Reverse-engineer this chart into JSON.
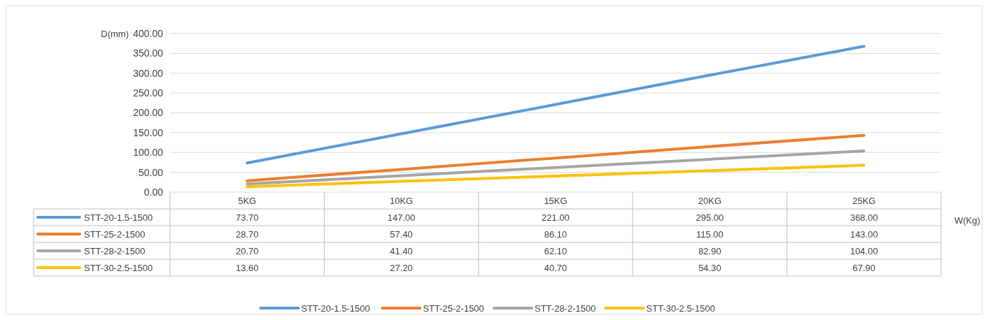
{
  "chart_data": {
    "type": "line",
    "ylabel": "D(mm)",
    "xlabel": "W(Kg)",
    "categories": [
      "5KG",
      "10KG",
      "15KG",
      "20KG",
      "25KG"
    ],
    "series": [
      {
        "name": "STT-20-1.5-1500",
        "color": "#5b9bd5",
        "values": [
          73.7,
          147,
          221,
          295,
          368
        ],
        "value_labels": [
          "73.70",
          "147.00",
          "221.00",
          "295.00",
          "368.00"
        ]
      },
      {
        "name": "STT-25-2-1500",
        "color": "#ed7d31",
        "values": [
          28.7,
          57.4,
          86.1,
          115,
          143
        ],
        "value_labels": [
          "28.70",
          "57.40",
          "86.10",
          "115.00",
          "143.00"
        ]
      },
      {
        "name": "STT-28-2-1500",
        "color": "#a5a5a5",
        "values": [
          20.7,
          41.4,
          62.1,
          82.9,
          104
        ],
        "value_labels": [
          "20.70",
          "41.40",
          "62.10",
          "82.90",
          "104.00"
        ]
      },
      {
        "name": "STT-30-2.5-1500",
        "color": "#ffc000",
        "values": [
          13.6,
          27.2,
          40.7,
          54.3,
          67.9
        ],
        "value_labels": [
          "13.60",
          "27.20",
          "40.70",
          "54.30",
          "67.90"
        ]
      }
    ],
    "ylim": [
      0,
      400
    ],
    "yticks": [
      {
        "value": 0,
        "label": "0.00"
      },
      {
        "value": 50,
        "label": "50.00"
      },
      {
        "value": 100,
        "label": "100.00"
      },
      {
        "value": 150,
        "label": "150.00"
      },
      {
        "value": 200,
        "label": "200.00"
      },
      {
        "value": 250,
        "label": "250.00"
      },
      {
        "value": 300,
        "label": "300.00"
      },
      {
        "value": 350,
        "label": "350.00"
      },
      {
        "value": 400,
        "label": "400.00"
      }
    ],
    "grid": "y",
    "legend": "bottom",
    "line_style": "solid",
    "marker": "none"
  }
}
